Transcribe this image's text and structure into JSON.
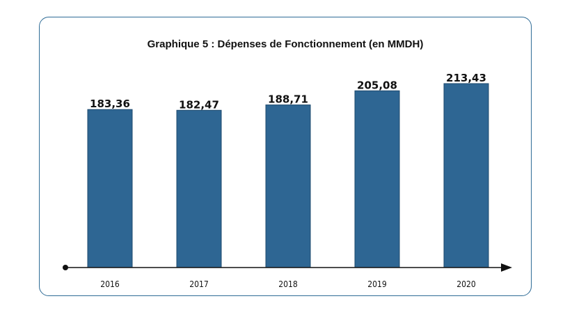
{
  "chart_data": {
    "type": "bar",
    "title": "Graphique 5 : Dépenses de Fonctionnement (en MMDH)",
    "categories": [
      "2016",
      "2017",
      "2018",
      "2019",
      "2020"
    ],
    "values": [
      183.36,
      182.47,
      188.71,
      205.08,
      213.43
    ],
    "value_labels": [
      "183,36",
      "182,47",
      "188,71",
      "205,08",
      "213,43"
    ],
    "xlabel": "",
    "ylabel": "",
    "ylim": [
      0,
      240
    ],
    "grid": false,
    "legend": "none",
    "bar_color": "#2e6693",
    "bar_border": "#1e4a6e",
    "axis_color": "#111111"
  },
  "frame": {
    "border_color": "#2e6b96"
  }
}
